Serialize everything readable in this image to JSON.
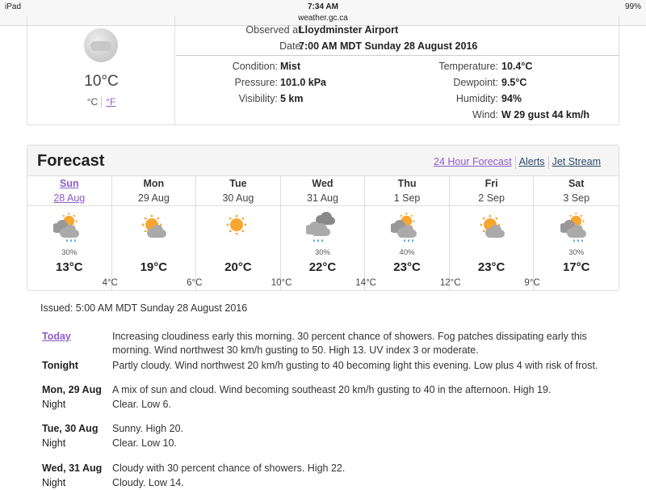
{
  "status": {
    "device": "iPad",
    "time": "7:34 AM",
    "url": "weather.gc.ca",
    "battery": "99%"
  },
  "observed": {
    "temp": "10°C",
    "unit_c": "°C",
    "unit_f": "°F",
    "icon": "mist-cloud-icon",
    "fields": [
      {
        "label": "Observed at:",
        "value": "Lloydminster Airport"
      },
      {
        "label": "Date:",
        "value": "7:00 AM MDT Sunday 28 August 2016"
      },
      {
        "label": "Condition:",
        "value": "Mist"
      },
      {
        "label": "Pressure:",
        "value": "101.0 kPa"
      },
      {
        "label": "Visibility:",
        "value": "5 km"
      },
      {
        "label": "Temperature:",
        "value": "10.4°C"
      },
      {
        "label": "Dewpoint:",
        "value": "9.5°C"
      },
      {
        "label": "Humidity:",
        "value": "94%"
      },
      {
        "label": "Wind:",
        "value": "W 29 gust 44 km/h"
      }
    ]
  },
  "forecast": {
    "title": "Forecast",
    "links": [
      "24 Hour Forecast",
      "Alerts",
      "Jet Stream"
    ],
    "link_colors": {
      "visited": "#8e5cc7",
      "link": "#2b4a6f"
    },
    "days": [
      {
        "name": "Sun",
        "date": "28 Aug",
        "icon": "sun-cloud-rain",
        "pop": "30%",
        "high": "13°C"
      },
      {
        "name": "Mon",
        "date": "29 Aug",
        "icon": "sun-cloud",
        "pop": "",
        "high": "19°C"
      },
      {
        "name": "Tue",
        "date": "30 Aug",
        "icon": "sun",
        "pop": "",
        "high": "20°C"
      },
      {
        "name": "Wed",
        "date": "31 Aug",
        "icon": "cloud-rain",
        "pop": "30%",
        "high": "22°C"
      },
      {
        "name": "Thu",
        "date": "1 Sep",
        "icon": "sun-cloud-rain",
        "pop": "40%",
        "high": "23°C"
      },
      {
        "name": "Fri",
        "date": "2 Sep",
        "icon": "sun-cloud",
        "pop": "",
        "high": "23°C"
      },
      {
        "name": "Sat",
        "date": "3 Sep",
        "icon": "sun-cloud-rain",
        "pop": "30%",
        "high": "17°C"
      }
    ],
    "lows": [
      "4°C",
      "6°C",
      "10°C",
      "14°C",
      "12°C",
      "9°C"
    ]
  },
  "issued": "Issued: 5:00 AM MDT Sunday 28 August 2016",
  "details": [
    {
      "period": "Today",
      "text": "Increasing cloudiness early this morning. 30 percent chance of showers. Fog patches dissipating early this morning. Wind northwest 30 km/h gusting to 50. High 13. UV index 3 or moderate."
    },
    {
      "period": "Tonight",
      "text": "Partly cloudy. Wind northwest 20 km/h gusting to 40 becoming light this evening. Low plus 4 with risk of frost."
    },
    {
      "period": "Mon, 29 Aug",
      "text": "A mix of sun and cloud. Wind becoming southeast 20 km/h gusting to 40 in the afternoon. High 19."
    },
    {
      "period": "Night",
      "text": "Clear. Low 6."
    },
    {
      "period": "Tue, 30 Aug",
      "text": "Sunny. High 20."
    },
    {
      "period": "Night",
      "text": "Clear. Low 10."
    },
    {
      "period": "Wed, 31 Aug",
      "text": "Cloudy with 30 percent chance of showers. High 22."
    },
    {
      "period": "Night",
      "text": "Cloudy. Low 14."
    }
  ]
}
